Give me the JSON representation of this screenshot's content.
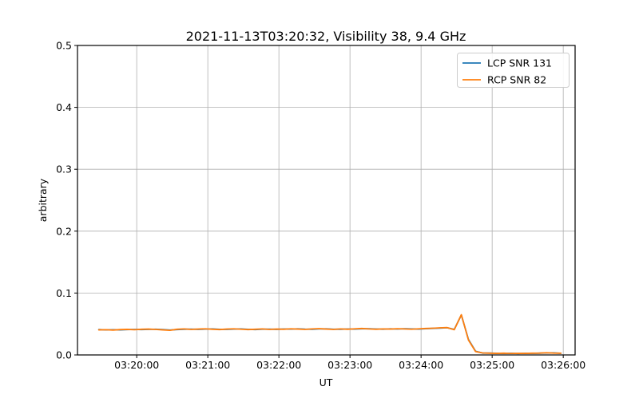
{
  "figure": {
    "background": "#ffffff"
  },
  "colors": {
    "lcp": "#1f77b4",
    "rcp": "#ff7f0e",
    "grid": "#b0b0b0",
    "spine": "#000000",
    "legend_border": "#cccccc",
    "legend_fill": "#ffffff"
  },
  "chart_data": {
    "type": "line",
    "title": "2021-11-13T03:20:32, Visibility 38, 9.4 GHz",
    "xlabel": "UT",
    "ylabel": "arbitrary",
    "grid": true,
    "x_axis": {
      "min": "03:19:10",
      "max": "03:26:10",
      "ticks": [
        "03:20:00",
        "03:21:00",
        "03:22:00",
        "03:23:00",
        "03:24:00",
        "03:25:00",
        "03:26:00"
      ]
    },
    "y_axis": {
      "min": 0.0,
      "max": 0.5,
      "ticks": [
        "0.0",
        "0.1",
        "0.2",
        "0.3",
        "0.4",
        "0.5"
      ]
    },
    "legend": {
      "position": "upper right",
      "entries": [
        "LCP SNR 131",
        "RCP SNR 82"
      ]
    },
    "x_start": "03:19:28",
    "x_step_seconds": 6,
    "series": [
      {
        "name": "LCP SNR 131",
        "color_key": "lcp",
        "values": [
          0.041,
          0.0404,
          0.0408,
          0.0405,
          0.0409,
          0.0412,
          0.041,
          0.0412,
          0.0416,
          0.041,
          0.0403,
          0.041,
          0.0415,
          0.0417,
          0.0413,
          0.0417,
          0.042,
          0.0414,
          0.0413,
          0.0417,
          0.042,
          0.0414,
          0.041,
          0.0416,
          0.0417,
          0.0413,
          0.0419,
          0.0417,
          0.0422,
          0.0417,
          0.0415,
          0.042,
          0.0422,
          0.0416,
          0.0415,
          0.0419,
          0.0417,
          0.0423,
          0.0424,
          0.0419,
          0.0416,
          0.0422,
          0.0419,
          0.0424,
          0.042,
          0.0418,
          0.0424,
          0.0429,
          0.0434,
          0.044,
          0.0412,
          0.0645,
          0.025,
          0.006,
          0.003,
          0.003,
          0.0027,
          0.0025,
          0.0027,
          0.0023,
          0.0027,
          0.0026,
          0.0028,
          0.0032,
          0.0033,
          0.0026
        ]
      },
      {
        "name": "RCP SNR 82",
        "color_key": "rcp",
        "values": [
          0.0405,
          0.0408,
          0.0402,
          0.041,
          0.0413,
          0.0408,
          0.0415,
          0.0418,
          0.0412,
          0.0405,
          0.0398,
          0.0415,
          0.042,
          0.0412,
          0.0418,
          0.0422,
          0.0415,
          0.041,
          0.0418,
          0.0422,
          0.0416,
          0.041,
          0.0415,
          0.042,
          0.0412,
          0.0418,
          0.0415,
          0.0422,
          0.0418,
          0.0412,
          0.042,
          0.0425,
          0.0418,
          0.0412,
          0.042,
          0.0415,
          0.0422,
          0.0428,
          0.042,
          0.0415,
          0.042,
          0.0418,
          0.0424,
          0.042,
          0.0416,
          0.0422,
          0.0428,
          0.0432,
          0.0438,
          0.0442,
          0.0408,
          0.065,
          0.024,
          0.0055,
          0.0032,
          0.0028,
          0.0025,
          0.0028,
          0.0024,
          0.0026,
          0.0025,
          0.0028,
          0.003,
          0.0035,
          0.003,
          0.0028
        ]
      }
    ]
  }
}
